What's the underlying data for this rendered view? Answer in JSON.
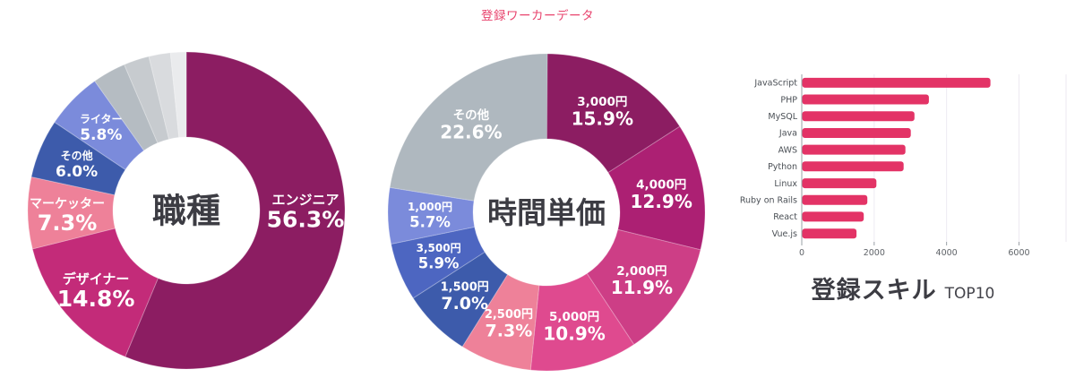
{
  "page_title": "登録ワーカーデータ",
  "accent_color": "#E8446E",
  "chart_data": [
    {
      "type": "pie",
      "variant": "donut",
      "title": "職種",
      "legend_position": "none",
      "segments": [
        {
          "label": "エンジニア",
          "value": 56.3,
          "pct_label": "56.3%",
          "color": "#8C1D62"
        },
        {
          "label": "デザイナー",
          "value": 14.8,
          "pct_label": "14.8%",
          "color": "#C32B79"
        },
        {
          "label": "マーケッター",
          "value": 7.3,
          "pct_label": "7.3%",
          "color": "#EE8199"
        },
        {
          "label": "その他",
          "value": 6.0,
          "pct_label": "6.0%",
          "color": "#3D5BAB"
        },
        {
          "label": "ライター",
          "value": 5.8,
          "pct_label": "5.8%",
          "color": "#7B8BDB"
        },
        {
          "label": "",
          "value": 3.4,
          "pct_label": "",
          "color": "#B5BCC2"
        },
        {
          "label": "",
          "value": 2.6,
          "pct_label": "",
          "color": "#C7CBCF"
        },
        {
          "label": "",
          "value": 2.2,
          "pct_label": "",
          "color": "#D9DBDE"
        },
        {
          "label": "",
          "value": 1.6,
          "pct_label": "",
          "color": "#EAEBED"
        }
      ]
    },
    {
      "type": "pie",
      "variant": "donut",
      "title": "時間単価",
      "legend_position": "none",
      "segments": [
        {
          "label": "3,000円",
          "value": 15.9,
          "pct_label": "15.9%",
          "color": "#8C1D62"
        },
        {
          "label": "4,000円",
          "value": 12.9,
          "pct_label": "12.9%",
          "color": "#AC2073"
        },
        {
          "label": "2,000円",
          "value": 11.9,
          "pct_label": "11.9%",
          "color": "#CD3E86"
        },
        {
          "label": "5,000円",
          "value": 10.9,
          "pct_label": "10.9%",
          "color": "#DF4A8F"
        },
        {
          "label": "2,500円",
          "value": 7.3,
          "pct_label": "7.3%",
          "color": "#EE8199"
        },
        {
          "label": "1,500円",
          "value": 7.0,
          "pct_label": "7.0%",
          "color": "#3D5BAB"
        },
        {
          "label": "3,500円",
          "value": 5.9,
          "pct_label": "5.9%",
          "color": "#4D66C1"
        },
        {
          "label": "1,000円",
          "value": 5.7,
          "pct_label": "5.7%",
          "color": "#7B8BDB"
        },
        {
          "label": "その他",
          "value": 22.6,
          "pct_label": "22.6%",
          "color": "#AFB8BF"
        }
      ]
    },
    {
      "type": "bar",
      "orientation": "horizontal",
      "title": "登録スキル",
      "subtitle": "TOP10",
      "categories": [
        "JavaScript",
        "PHP",
        "MySQL",
        "Java",
        "AWS",
        "Python",
        "Linux",
        "Ruby on Rails",
        "React",
        "Vue.js"
      ],
      "values": [
        5200,
        3500,
        3100,
        3000,
        2850,
        2800,
        2050,
        1800,
        1700,
        1500
      ],
      "bar_color": "#E33366",
      "x_ticks": [
        0,
        2000,
        4000,
        6000
      ],
      "xlim": [
        0,
        7300
      ],
      "grid": true,
      "xlabel": "",
      "ylabel": ""
    }
  ]
}
